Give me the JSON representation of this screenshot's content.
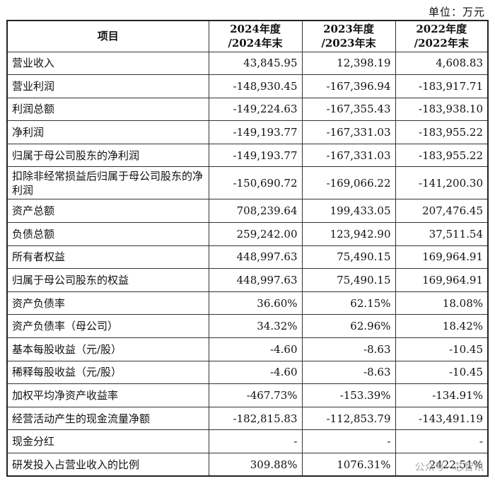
{
  "unit_label": "单位：万元",
  "headers": {
    "item": "项目",
    "y2024_line1": "2024年度",
    "y2024_line2": "/2024年末",
    "y2023_line1": "2023年度",
    "y2023_line2": "/2023年末",
    "y2022_line1": "2022年度",
    "y2022_line2": "/2022年末"
  },
  "rows": [
    {
      "label": "营业收入",
      "v2024": "43,845.95",
      "v2023": "12,398.19",
      "v2022": "4,608.83"
    },
    {
      "label": "营业利润",
      "v2024": "-148,930.45",
      "v2023": "-167,396.94",
      "v2022": "-183,917.71"
    },
    {
      "label": "利润总额",
      "v2024": "-149,224.63",
      "v2023": "-167,355.43",
      "v2022": "-183,938.10"
    },
    {
      "label": "净利润",
      "v2024": "-149,193.77",
      "v2023": "-167,331.03",
      "v2022": "-183,955.22"
    },
    {
      "label": "归属于母公司股东的净利润",
      "v2024": "-149,193.77",
      "v2023": "-167,331.03",
      "v2022": "-183,955.22"
    },
    {
      "label": "扣除非经常损益后归属于母公司股东的净利润",
      "v2024": "-150,690.72",
      "v2023": "-169,066.22",
      "v2022": "-141,200.30"
    },
    {
      "label": "资产总额",
      "v2024": "708,239.64",
      "v2023": "199,433.05",
      "v2022": "207,476.45"
    },
    {
      "label": "负债总额",
      "v2024": "259,242.00",
      "v2023": "123,942.90",
      "v2022": "37,511.54"
    },
    {
      "label": "所有者权益",
      "v2024": "448,997.63",
      "v2023": "75,490.15",
      "v2022": "169,964.91"
    },
    {
      "label": "归属于母公司股东的权益",
      "v2024": "448,997.63",
      "v2023": "75,490.15",
      "v2022": "169,964.91"
    },
    {
      "label": "资产负债率",
      "v2024": "36.60%",
      "v2023": "62.15%",
      "v2022": "18.08%"
    },
    {
      "label": "资产负债率（母公司）",
      "v2024": "34.32%",
      "v2023": "62.96%",
      "v2022": "18.42%"
    },
    {
      "label": "基本每股收益（元/股）",
      "v2024": "-4.60",
      "v2023": "-8.63",
      "v2022": "-10.45"
    },
    {
      "label": "稀释每股收益（元/股）",
      "v2024": "-4.60",
      "v2023": "-8.63",
      "v2022": "-10.45"
    },
    {
      "label": "加权平均净资产收益率",
      "v2024": "-467.73%",
      "v2023": "-153.39%",
      "v2022": "-134.91%"
    },
    {
      "label": "经营活动产生的现金流量净额",
      "v2024": "-182,815.83",
      "v2023": "-112,853.79",
      "v2022": "-143,491.19"
    },
    {
      "label": "现金分红",
      "v2024": "-",
      "v2023": "-",
      "v2022": "-"
    },
    {
      "label": "研发投入占营业收入的比例",
      "v2024": "309.88%",
      "v2023": "1076.31%",
      "v2022": "2422.51%"
    }
  ],
  "watermark": "公众号 · 芯智讯"
}
